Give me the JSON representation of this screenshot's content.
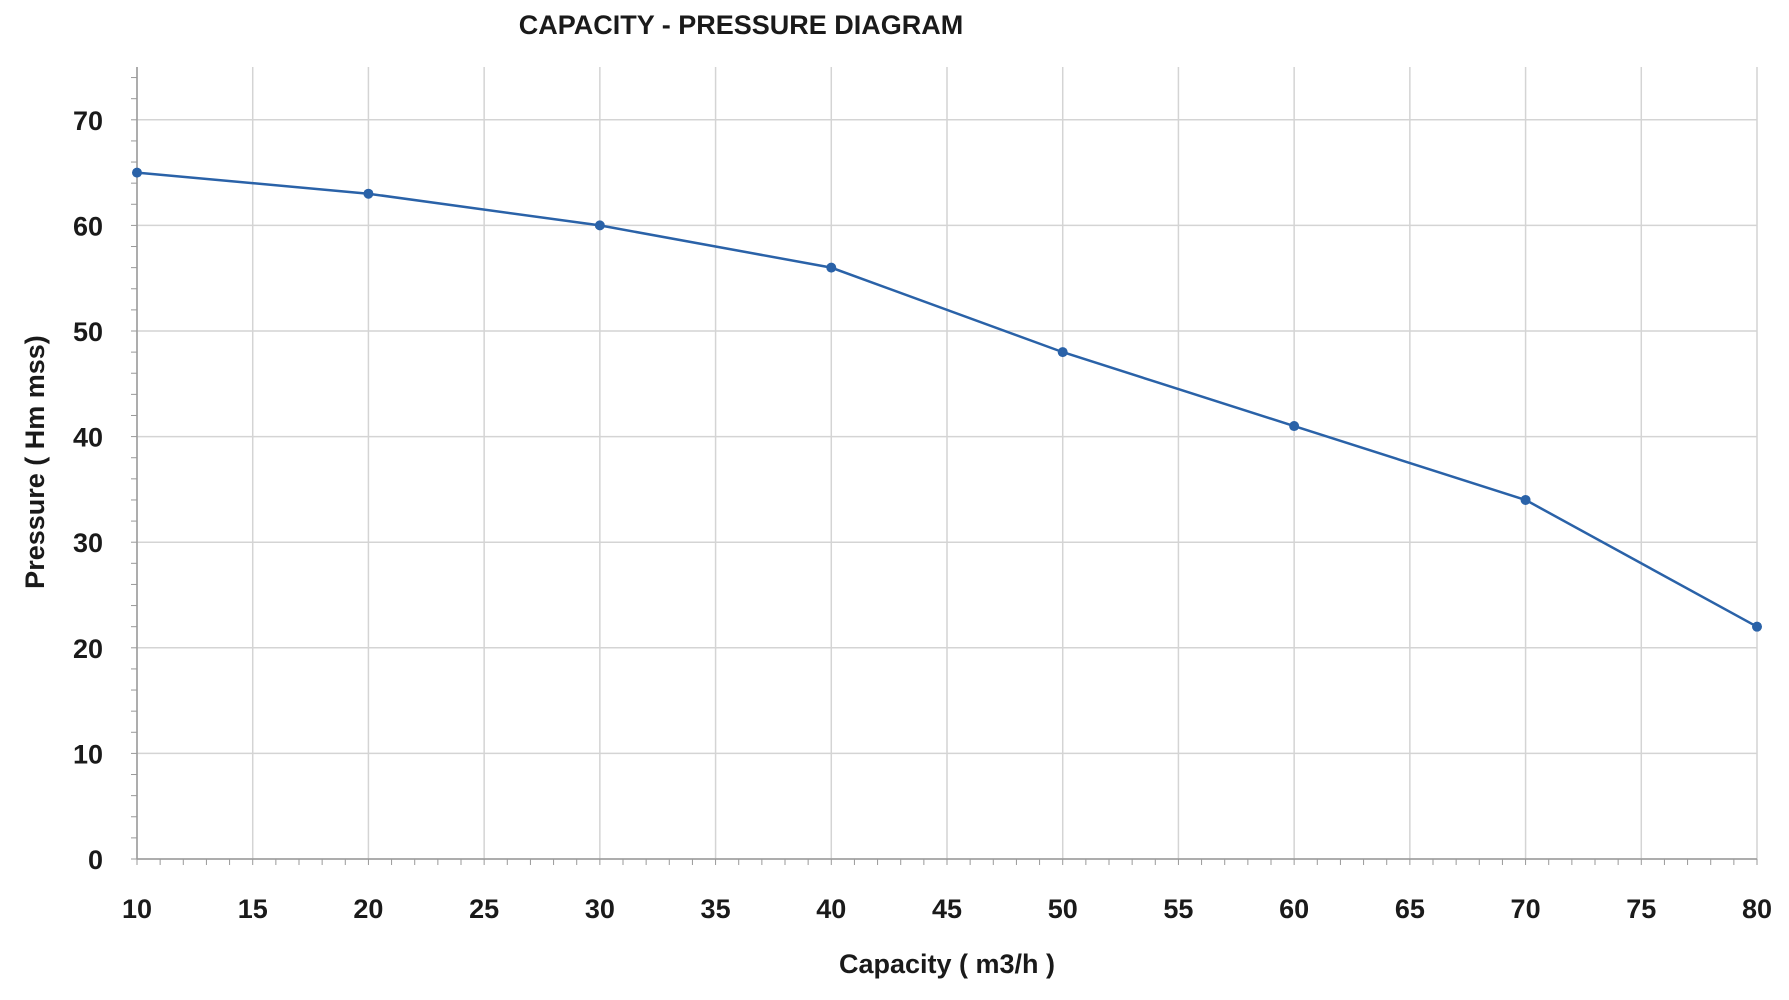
{
  "chart_data": {
    "type": "line",
    "title": "CAPACITY - PRESSURE DIAGRAM",
    "xlabel": "Capacity ( m3/h )",
    "ylabel": "Pressure ( Hm mss)",
    "xlim": [
      10,
      80
    ],
    "ylim": [
      0,
      75
    ],
    "xticks": [
      10,
      15,
      20,
      25,
      30,
      35,
      40,
      45,
      50,
      55,
      60,
      65,
      70,
      75,
      80
    ],
    "yticks": [
      0,
      10,
      20,
      30,
      40,
      50,
      60,
      70
    ],
    "grid": true,
    "legend": "none",
    "series": [
      {
        "name": "Pressure",
        "color": "#2a62a8",
        "x": [
          10,
          20,
          30,
          40,
          50,
          60,
          70,
          80
        ],
        "y": [
          65,
          63,
          60,
          56,
          48,
          41,
          34,
          22
        ]
      }
    ]
  }
}
